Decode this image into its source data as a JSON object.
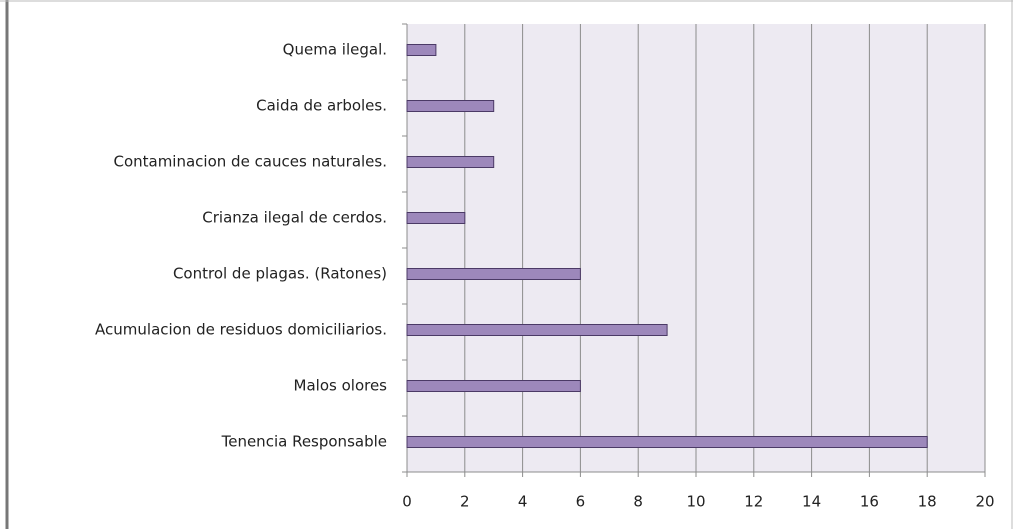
{
  "chart_data": {
    "type": "bar",
    "orientation": "horizontal",
    "categories": [
      "Quema ilegal.",
      "Caida de arboles.",
      "Contaminacion de cauces naturales.",
      "Crianza ilegal de cerdos.",
      "Control de plagas. (Ratones)",
      "Acumulacion de residuos domiciliarios.",
      "Malos olores",
      "Tenencia Responsable"
    ],
    "values": [
      1,
      3,
      3,
      2,
      6,
      9,
      6,
      18
    ],
    "color": "#9d88bb",
    "xlim": [
      0,
      20
    ],
    "xticks": [
      0,
      2,
      4,
      6,
      8,
      10,
      12,
      14,
      16,
      18,
      20
    ],
    "grid": true
  }
}
